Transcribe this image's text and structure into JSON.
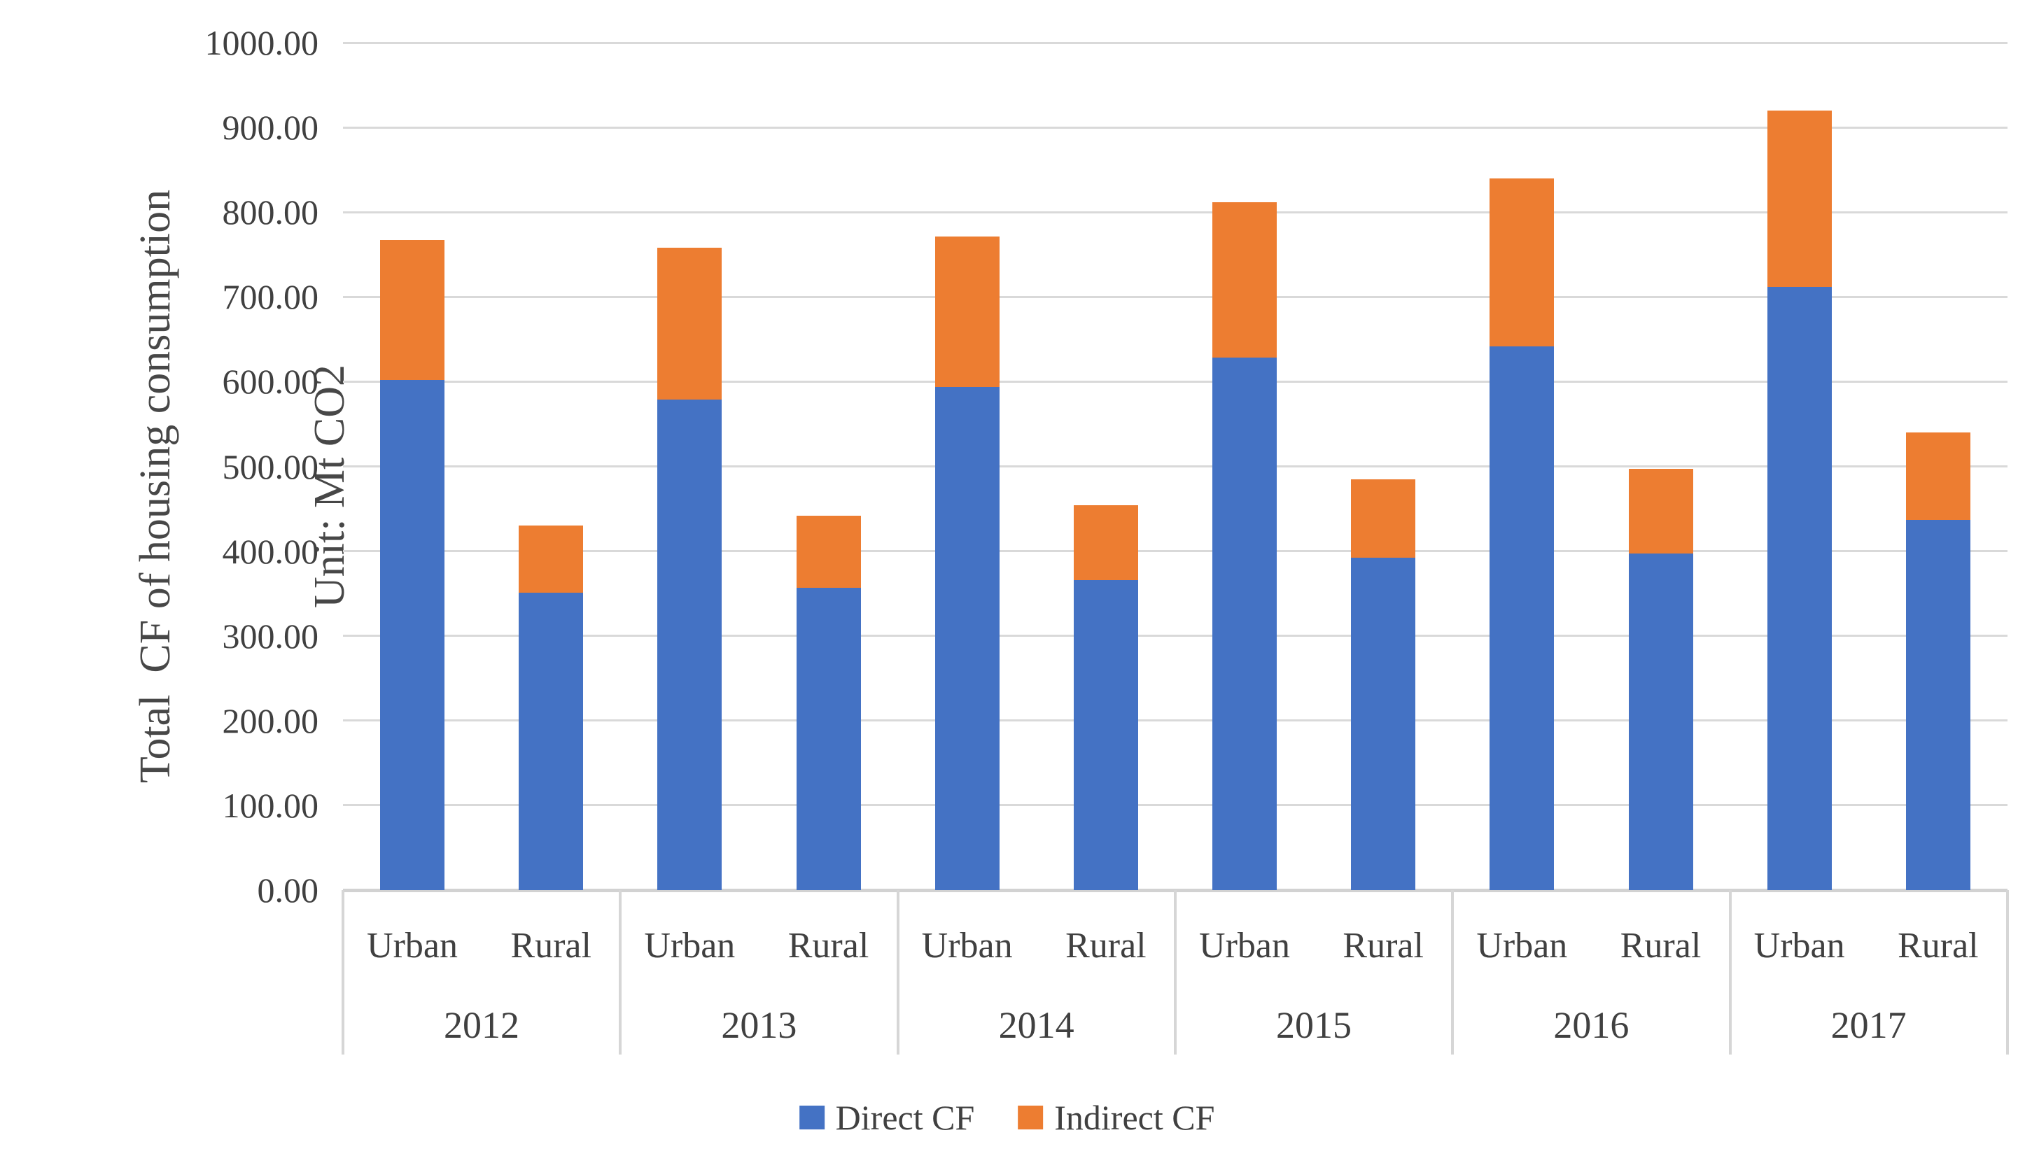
{
  "chart_data": {
    "type": "bar",
    "stacked": true,
    "title": "",
    "ylabel_line1": "Total  CF of housing consumption",
    "ylabel_line2": "Unit: Mt CO2",
    "xlabel": "",
    "years": [
      "2012",
      "2013",
      "2014",
      "2015",
      "2016",
      "2017"
    ],
    "subcategories": [
      "Urban",
      "Rural"
    ],
    "categories": [
      "2012 Urban",
      "2012 Rural",
      "2013 Urban",
      "2013 Rural",
      "2014 Urban",
      "2014 Rural",
      "2015 Urban",
      "2015 Rural",
      "2016 Urban",
      "2016 Rural",
      "2017 Urban",
      "2017 Rural"
    ],
    "series": [
      {
        "name": "Direct CF",
        "color": "#4472C4",
        "values": [
          602,
          351,
          579,
          357,
          594,
          366,
          628,
          392,
          642,
          397,
          712,
          437
        ]
      },
      {
        "name": "Indirect CF",
        "color": "#ED7D31",
        "values": [
          165,
          79,
          179,
          85,
          177,
          88,
          184,
          93,
          198,
          100,
          208,
          103
        ]
      }
    ],
    "stacked_totals": [
      767,
      430,
      758,
      442,
      771,
      454,
      812,
      485,
      840,
      497,
      920,
      540
    ],
    "ylim": [
      0,
      1000
    ],
    "ytick_step": 100,
    "yticks": [
      "1000.00",
      "900.00",
      "800.00",
      "700.00",
      "600.00",
      "500.00",
      "400.00",
      "300.00",
      "200.00",
      "100.00",
      "0.00"
    ],
    "grid": true,
    "gridline_color": "#d9d9d9",
    "text_color": "#404040",
    "legend_position": "bottom"
  }
}
